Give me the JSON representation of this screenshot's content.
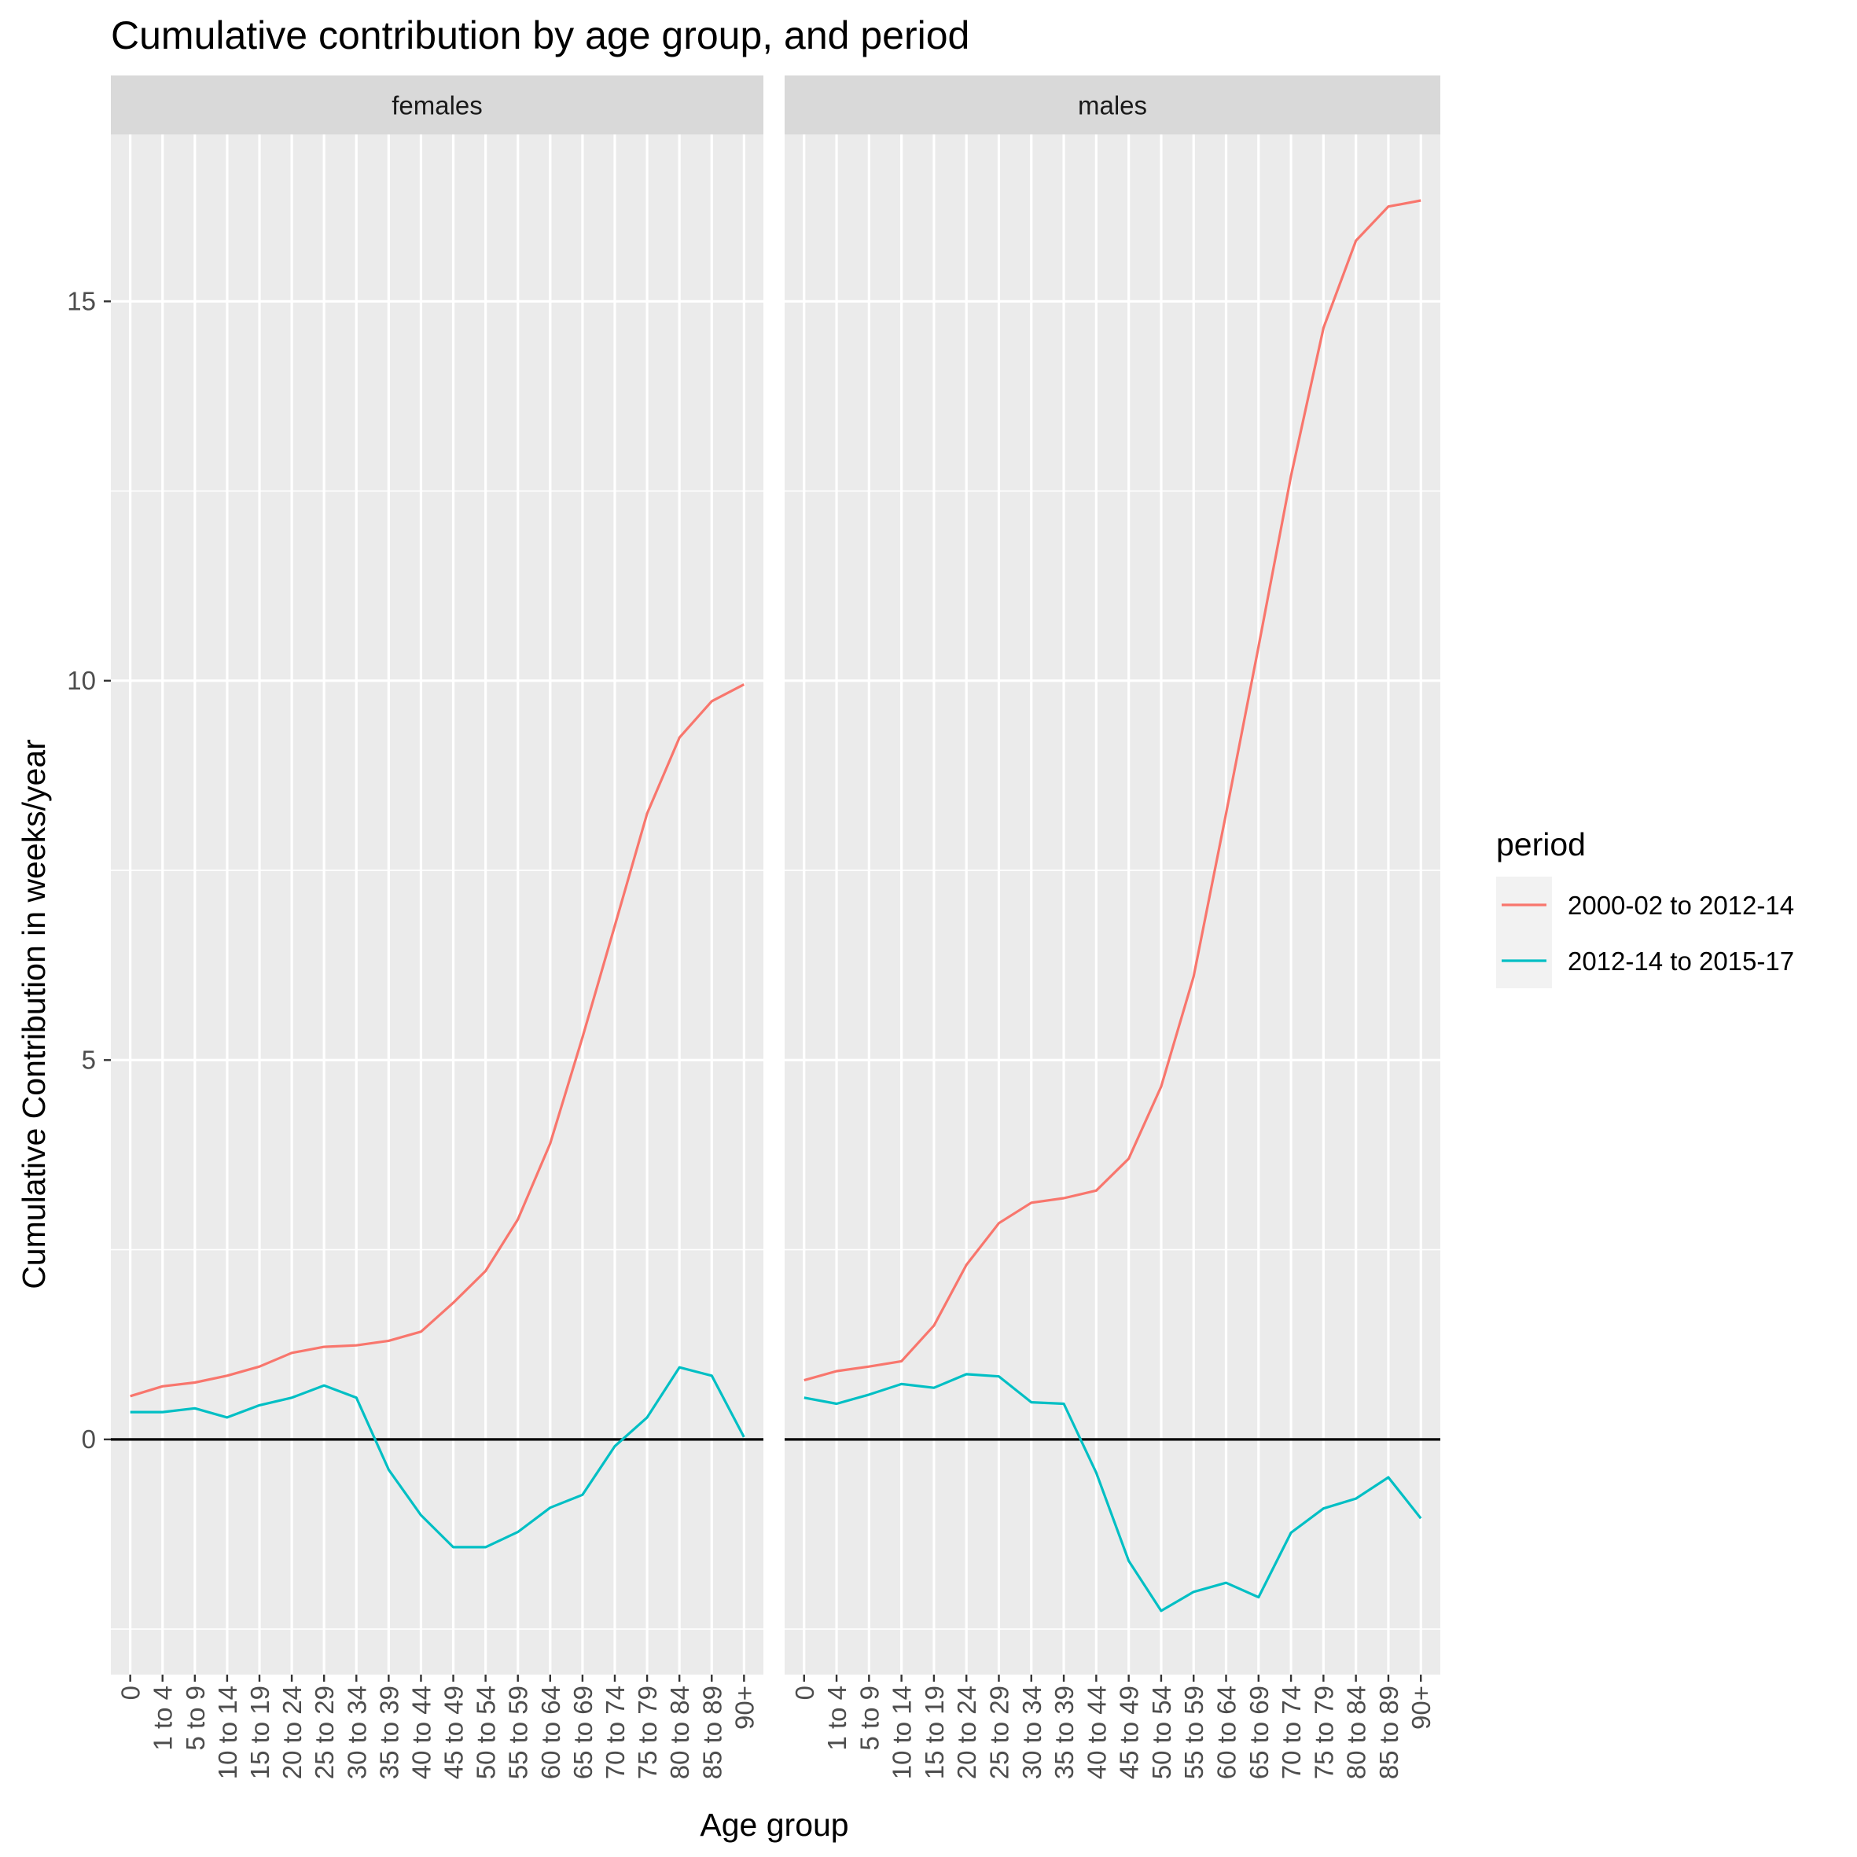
{
  "chart_data": {
    "type": "line",
    "title": "Cumulative contribution by age group, and period",
    "xlabel": "Age group",
    "ylabel": "Cumulative Contribution in weeks/year",
    "categories": [
      "0",
      "1 to 4",
      "5 to 9",
      "10 to 14",
      "15 to 19",
      "20 to 24",
      "25 to 29",
      "30 to 34",
      "35 to 39",
      "40 to 44",
      "45 to 49",
      "50 to 54",
      "55 to 59",
      "60 to 64",
      "65 to 69",
      "70 to 74",
      "75 to 79",
      "80 to 84",
      "85 to 89",
      "90+"
    ],
    "ylim": [
      -3.1,
      17.2
    ],
    "y_ticks": [
      0,
      5,
      10,
      15
    ],
    "y_minor_ticks": [
      -2.5,
      2.5,
      7.5,
      12.5
    ],
    "grid": true,
    "reference_line_y": 0,
    "legend": {
      "title": "period",
      "position": "right"
    },
    "series_colors": {
      "2000-02 to 2012-14": "#F8766D",
      "2012-14 to 2015-17": "#00BFC4"
    },
    "zero_line_color": "#000000",
    "facets": [
      {
        "label": "females",
        "series": [
          {
            "name": "2000-02 to 2012-14",
            "values": [
              0.57,
              0.7,
              0.75,
              0.84,
              0.96,
              1.14,
              1.22,
              1.24,
              1.3,
              1.42,
              1.8,
              2.22,
              2.9,
              3.9,
              5.3,
              6.77,
              8.25,
              9.25,
              9.73,
              9.95
            ]
          },
          {
            "name": "2012-14 to 2015-17",
            "values": [
              0.36,
              0.36,
              0.41,
              0.29,
              0.45,
              0.55,
              0.71,
              0.55,
              -0.4,
              -1.0,
              -1.42,
              -1.42,
              -1.22,
              -0.9,
              -0.73,
              -0.09,
              0.29,
              0.95,
              0.84,
              0.03
            ]
          }
        ]
      },
      {
        "label": "males",
        "series": [
          {
            "name": "2000-02 to 2012-14",
            "values": [
              0.78,
              0.9,
              0.96,
              1.03,
              1.5,
              2.3,
              2.85,
              3.12,
              3.18,
              3.28,
              3.7,
              4.65,
              6.1,
              8.25,
              10.45,
              12.7,
              14.65,
              15.8,
              16.25,
              16.33
            ]
          },
          {
            "name": "2012-14 to 2015-17",
            "values": [
              0.55,
              0.47,
              0.59,
              0.73,
              0.68,
              0.86,
              0.83,
              0.49,
              0.47,
              -0.44,
              -1.6,
              -2.26,
              -2.01,
              -1.89,
              -2.08,
              -1.23,
              -0.91,
              -0.78,
              -0.5,
              -1.04
            ]
          }
        ]
      }
    ]
  }
}
